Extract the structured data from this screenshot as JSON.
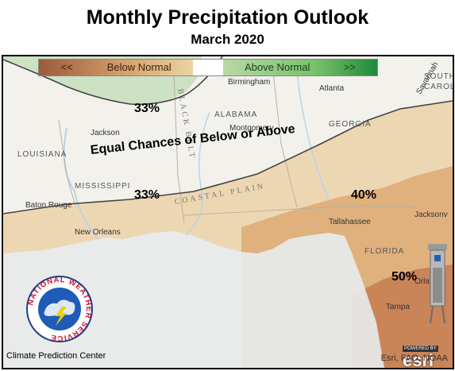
{
  "header": {
    "title": "Monthly Precipitation Outlook",
    "subtitle": "March 2020"
  },
  "legend": {
    "below_arrows": "<<",
    "below_label": "Below Normal",
    "above_label": "Above Normal",
    "above_arrows": ">>"
  },
  "zones": {
    "equal_chances_label": "Equal Chances of Below or Above",
    "above_north_pct": "33%",
    "below_boundary_pct_west": "33%",
    "below_boundary_pct_east": "40%",
    "below_south_pct": "50%"
  },
  "places": {
    "states": [
      "ALABAMA",
      "GEORGIA",
      "LOUISIANA",
      "MISSISSIPPI",
      "FLORIDA",
      "SOUTH",
      "CAROL"
    ],
    "cities": [
      "Birmingham",
      "Atlanta",
      "Jackson",
      "Montgomery",
      "Baton Rouge",
      "New Orleans",
      "Tallahassee",
      "Jacksonv",
      "Tampa",
      "Orlando",
      "Savannah"
    ],
    "regions": [
      "COASTAL PLAIN",
      "BLACK BELT"
    ]
  },
  "credits": {
    "center": "Climate Prediction Center",
    "attribution": "Esri, FAO, NOAA",
    "powered_by": "POWERED BY",
    "esri_logo": "esri"
  },
  "nws_logo": {
    "ring_text": "NATIONAL WEATHER SERVICE"
  },
  "colors": {
    "above_shade": "#c9dfbf",
    "below_light": "#ecd2a8",
    "below_mid": "#dca86f",
    "below_dark": "#c47c51",
    "water": "#e7eef0",
    "land": "#f2f1ec"
  }
}
